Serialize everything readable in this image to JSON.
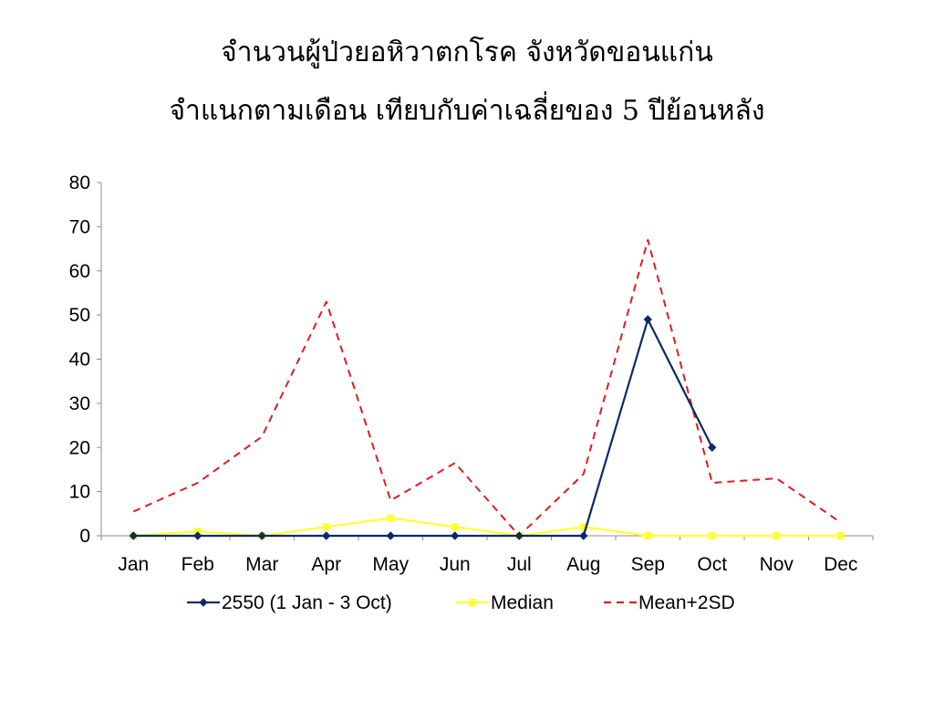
{
  "title": {
    "line1": "จำนวนผู้ป่วยอหิวาตกโรค จังหวัดขอนแก่น",
    "line2": "จำแนกตามเดือน เทียบกับค่าเฉลี่ยของ 5 ปีย้อนหลัง"
  },
  "chart_data": {
    "type": "line",
    "title": "",
    "xlabel": "",
    "ylabel": "",
    "categories": [
      "Jan",
      "Feb",
      "Mar",
      "Apr",
      "May",
      "Jun",
      "Jul",
      "Aug",
      "Sep",
      "Oct",
      "Nov",
      "Dec"
    ],
    "ylim": [
      0,
      80
    ],
    "yticks": [
      0,
      10,
      20,
      30,
      40,
      50,
      60,
      70,
      80
    ],
    "grid": false,
    "legend_position": "bottom",
    "series": [
      {
        "name": "2550 (1 Jan - 3 Oct)",
        "values": [
          0,
          0,
          0,
          0,
          0,
          0,
          0,
          0,
          49,
          20,
          null,
          null
        ],
        "color": "#0b2a66",
        "style": "solid",
        "marker": "diamond"
      },
      {
        "name": "Median",
        "values": [
          0,
          1,
          0,
          2,
          4,
          2,
          0,
          2,
          0,
          0,
          0,
          0
        ],
        "color": "#ffff33",
        "style": "solid",
        "marker": "square"
      },
      {
        "name": "Mean+2SD",
        "values": [
          5.5,
          12,
          22.5,
          53,
          8,
          16.5,
          0,
          14,
          67,
          12,
          13,
          3
        ],
        "color": "#e41a1c",
        "style": "dashed",
        "marker": "none"
      }
    ]
  }
}
